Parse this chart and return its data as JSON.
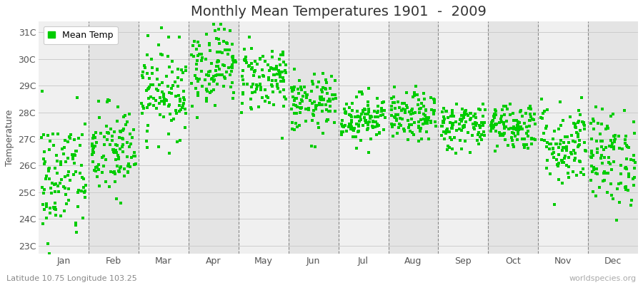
{
  "title": "Monthly Mean Temperatures 1901  -  2009",
  "ylabel": "Temperature",
  "xlabel_labels": [
    "Jan",
    "Feb",
    "Mar",
    "Apr",
    "May",
    "Jun",
    "Jul",
    "Aug",
    "Sep",
    "Oct",
    "Nov",
    "Dec"
  ],
  "ytick_labels": [
    "23C",
    "24C",
    "25C",
    "26C",
    "27C",
    "28C",
    "29C",
    "30C",
    "31C"
  ],
  "ytick_values": [
    23,
    24,
    25,
    26,
    27,
    28,
    29,
    30,
    31
  ],
  "ylim": [
    22.7,
    31.4
  ],
  "dot_color": "#00CC00",
  "dot_size": 5,
  "background_color": "#FFFFFF",
  "plot_bg_odd": "#F0F0F0",
  "plot_bg_even": "#E4E4E4",
  "legend_label": "Mean Temp",
  "subtitle": "Latitude 10.75 Longitude 103.25",
  "watermark": "worldspecies.org",
  "title_fontsize": 14,
  "label_fontsize": 9,
  "tick_fontsize": 9,
  "monthly_means": [
    25.5,
    26.5,
    28.8,
    29.8,
    29.3,
    28.3,
    27.8,
    27.8,
    27.5,
    27.5,
    26.8,
    26.3
  ],
  "monthly_stds": [
    1.2,
    0.9,
    0.85,
    0.75,
    0.65,
    0.55,
    0.45,
    0.45,
    0.45,
    0.45,
    0.8,
    0.9
  ],
  "dashed_color": "#888888",
  "grid_color": "#CCCCCC"
}
